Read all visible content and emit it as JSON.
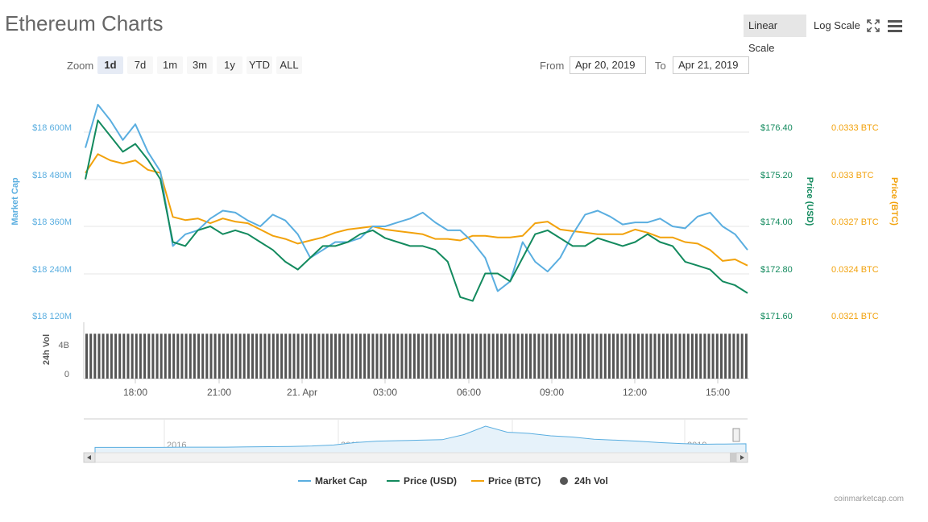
{
  "header": {
    "title": "Ethereum Charts",
    "linear_scale": "Linear Scale",
    "log_scale": "Log Scale"
  },
  "toolbar": {
    "zoom_label": "Zoom",
    "zoom_buttons": [
      "1d",
      "7d",
      "1m",
      "3m",
      "1y",
      "YTD",
      "ALL"
    ],
    "active_zoom": "1d",
    "from_label": "From",
    "from_value": "Apr 20, 2019",
    "to_label": "To",
    "to_value": "Apr 21, 2019"
  },
  "credit": "coinmarketcap.com",
  "colors": {
    "market_cap": "#5aaee0",
    "price_usd": "#138a5e",
    "price_btc": "#f2a20c",
    "volume": "#555555",
    "grid": "#e6e6e6"
  },
  "chart_data": {
    "type": "line",
    "x_ticks": [
      "18:00",
      "21:00",
      "21. Apr",
      "03:00",
      "06:00",
      "09:00",
      "12:00",
      "15:00"
    ],
    "axes": {
      "market_cap": {
        "label": "Market Cap",
        "ticks": [
          "$18 600M",
          "$18 480M",
          "$18 360M",
          "$18 240M",
          "$18 120M"
        ],
        "range": [
          18120,
          18600
        ]
      },
      "price_usd": {
        "label": "Price (USD)",
        "ticks": [
          "$176.40",
          "$175.20",
          "$174.00",
          "$172.80",
          "$171.60"
        ],
        "range": [
          171.6,
          176.4
        ]
      },
      "price_btc": {
        "label": "Price (BTC)",
        "ticks": [
          "0.0333 BTC",
          "0.033 BTC",
          "0.0327 BTC",
          "0.0324 BTC",
          "0.0321 BTC"
        ],
        "range": [
          0.0321,
          0.0333
        ]
      },
      "volume": {
        "label": "24h Vol",
        "ticks": [
          "4B",
          "0"
        ]
      }
    },
    "series": [
      {
        "name": "Market Cap",
        "key": "market_cap",
        "values": [
          18560,
          18670,
          18630,
          18580,
          18620,
          18550,
          18500,
          18310,
          18340,
          18350,
          18380,
          18400,
          18395,
          18375,
          18360,
          18390,
          18375,
          18340,
          18280,
          18300,
          18320,
          18320,
          18330,
          18360,
          18360,
          18370,
          18380,
          18395,
          18370,
          18350,
          18350,
          18320,
          18280,
          18195,
          18220,
          18320,
          18270,
          18245,
          18280,
          18340,
          18390,
          18400,
          18385,
          18365,
          18370,
          18370,
          18380,
          18360,
          18355,
          18385,
          18395,
          18360,
          18340,
          18300
        ]
      },
      {
        "name": "Price (USD)",
        "key": "price_usd",
        "values": [
          175.2,
          176.7,
          176.3,
          175.9,
          176.1,
          175.7,
          175.2,
          173.6,
          173.5,
          173.9,
          174.0,
          173.8,
          173.9,
          173.8,
          173.6,
          173.4,
          173.1,
          172.9,
          173.2,
          173.5,
          173.5,
          173.6,
          173.8,
          173.9,
          173.7,
          173.6,
          173.5,
          173.5,
          173.4,
          173.1,
          172.2,
          172.1,
          172.8,
          172.8,
          172.6,
          173.2,
          173.8,
          173.9,
          173.7,
          173.5,
          173.5,
          173.7,
          173.6,
          173.5,
          173.6,
          173.8,
          173.6,
          173.5,
          173.1,
          173.0,
          172.9,
          172.6,
          172.5,
          172.3
        ]
      },
      {
        "name": "Price (BTC)",
        "key": "price_btc",
        "values": [
          0.03304,
          0.03316,
          0.03312,
          0.0331,
          0.03312,
          0.03306,
          0.03304,
          0.03276,
          0.03274,
          0.03275,
          0.03272,
          0.03275,
          0.03273,
          0.03272,
          0.03268,
          0.03264,
          0.03262,
          0.03259,
          0.03261,
          0.03263,
          0.03266,
          0.03268,
          0.03269,
          0.0327,
          0.03268,
          0.03267,
          0.03266,
          0.03265,
          0.03262,
          0.03262,
          0.03261,
          0.03264,
          0.03264,
          0.03263,
          0.03263,
          0.03264,
          0.03272,
          0.03273,
          0.03268,
          0.03267,
          0.03266,
          0.03265,
          0.03265,
          0.03265,
          0.03268,
          0.03266,
          0.03263,
          0.03263,
          0.0326,
          0.03259,
          0.03255,
          0.03248,
          0.03249,
          0.03245
        ]
      }
    ],
    "volume_values": [
      4.8,
      4.8,
      4.8,
      4.8,
      4.8,
      4.8,
      4.8,
      4.8,
      4.8,
      4.8,
      4.8,
      4.8,
      4.8,
      4.8,
      4.8,
      4.8,
      4.8,
      4.8,
      4.8,
      4.8,
      4.8,
      4.8,
      4.8,
      4.8,
      4.8,
      4.8,
      4.8,
      4.8,
      4.8,
      4.8,
      4.8,
      4.8,
      4.8,
      4.8,
      4.8,
      4.8,
      4.8,
      4.8,
      4.8,
      4.8,
      4.8,
      4.8,
      4.8,
      4.8,
      4.8,
      4.8,
      4.8,
      4.8,
      4.8,
      4.8,
      4.8,
      4.8,
      4.8,
      4.8
    ],
    "navigator": {
      "years": [
        "2016",
        "2017",
        "2018",
        "2019"
      ],
      "values": [
        0.02,
        0.02,
        0.02,
        0.02,
        0.03,
        0.03,
        0.03,
        0.04,
        0.05,
        0.06,
        0.08,
        0.12,
        0.22,
        0.28,
        0.3,
        0.32,
        0.34,
        0.55,
        0.9,
        0.65,
        0.6,
        0.5,
        0.45,
        0.36,
        0.32,
        0.28,
        0.22,
        0.18,
        0.15,
        0.16,
        0.17
      ]
    },
    "legend": [
      "Market Cap",
      "Price (USD)",
      "Price (BTC)",
      "24h Vol"
    ],
    "legend_placement": "bottom-center"
  }
}
